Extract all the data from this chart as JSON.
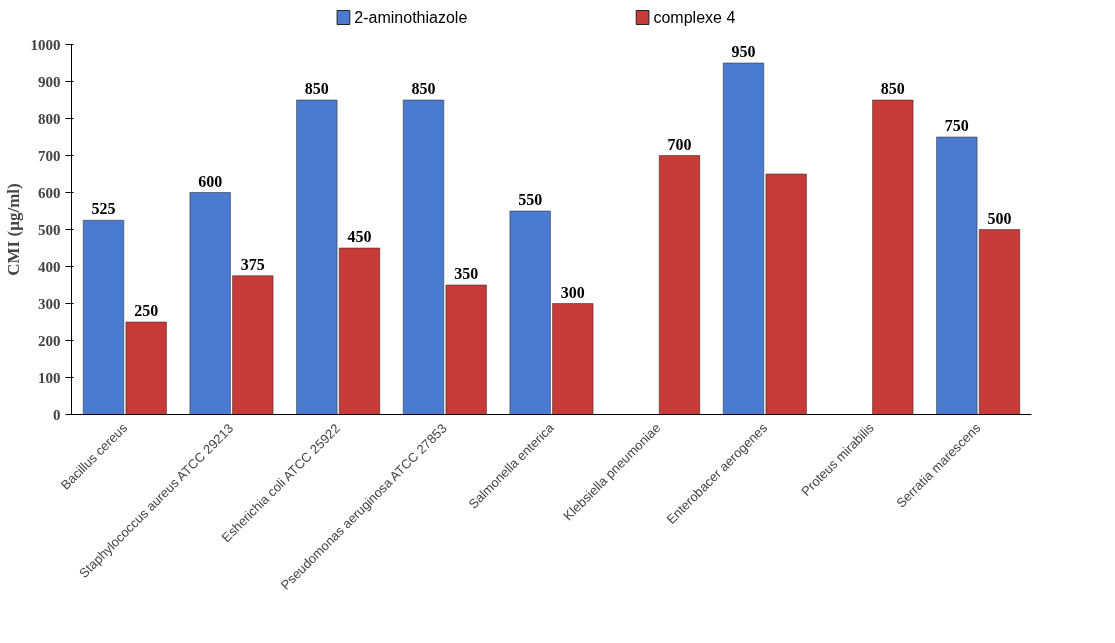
{
  "chart_data": {
    "type": "bar",
    "ylabel": "CMI (µg/ml)",
    "categories": [
      "Bacillus cereus",
      "Staphylococcus aureus ATCC 29213",
      "Esherichia coli ATCC 25922",
      "Pseudomonas aeruginosa ATCC 27853",
      "Salmonella enterica",
      "Klebsiella pneumoniae",
      "Enterobacer aerogenes",
      "Proteus mirabilis",
      "Serratia marescens"
    ],
    "series": [
      {
        "name": "2-aminothiazole",
        "color": "#4a7bd0",
        "values": [
          525,
          600,
          850,
          850,
          550,
          null,
          950,
          null,
          750
        ],
        "value_labels": [
          "525",
          "600",
          "850",
          "850",
          "550",
          null,
          "950",
          null,
          "750"
        ]
      },
      {
        "name": "complexe 4",
        "color": "#c83a35",
        "values": [
          250,
          375,
          450,
          350,
          300,
          700,
          650,
          850,
          500
        ],
        "value_labels": [
          "250",
          "375",
          "450",
          "350",
          "300",
          "700",
          null,
          "850",
          "500"
        ]
      }
    ],
    "ylim": [
      0,
      1000
    ],
    "yticks": [
      0,
      100,
      200,
      300,
      400,
      500,
      600,
      700,
      800,
      900,
      1000
    ],
    "grid": false,
    "legend": "top"
  }
}
